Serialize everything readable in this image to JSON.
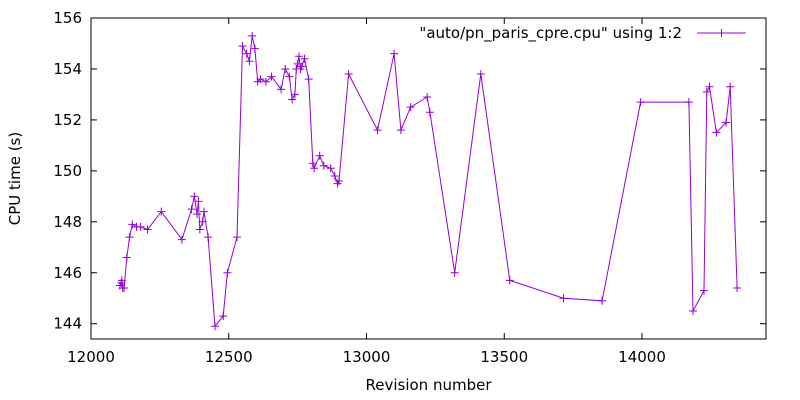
{
  "chart_data": {
    "type": "line",
    "title": "",
    "xlabel": "Revision number",
    "ylabel": "CPU time (s)",
    "xlim": [
      12000,
      14450
    ],
    "ylim": [
      143.4,
      156
    ],
    "xticks": [
      12000,
      12500,
      13000,
      13500,
      14000
    ],
    "yticks": [
      144,
      146,
      148,
      150,
      152,
      154,
      156
    ],
    "grid": false,
    "legend_position": "top-right",
    "series": [
      {
        "name": "\"auto/pn_paris_cpre.cpu\" using 1:2",
        "color": "#9400d3",
        "marker": "plus",
        "points": [
          [
            12105,
            145.5
          ],
          [
            12110,
            145.6
          ],
          [
            12112,
            145.7
          ],
          [
            12115,
            145.4
          ],
          [
            12120,
            145.4
          ],
          [
            12130,
            146.6
          ],
          [
            12140,
            147.4
          ],
          [
            12150,
            147.9
          ],
          [
            12165,
            147.8
          ],
          [
            12180,
            147.8
          ],
          [
            12205,
            147.7
          ],
          [
            12255,
            148.4
          ],
          [
            12330,
            147.3
          ],
          [
            12365,
            148.5
          ],
          [
            12375,
            149.0
          ],
          [
            12385,
            148.3
          ],
          [
            12390,
            148.8
          ],
          [
            12395,
            147.7
          ],
          [
            12405,
            148.0
          ],
          [
            12410,
            148.4
          ],
          [
            12425,
            147.4
          ],
          [
            12450,
            143.9
          ],
          [
            12480,
            144.3
          ],
          [
            12495,
            146.0
          ],
          [
            12530,
            147.4
          ],
          [
            12550,
            154.9
          ],
          [
            12565,
            154.6
          ],
          [
            12575,
            154.3
          ],
          [
            12585,
            155.3
          ],
          [
            12595,
            154.8
          ],
          [
            12605,
            153.5
          ],
          [
            12615,
            153.6
          ],
          [
            12635,
            153.5
          ],
          [
            12655,
            153.7
          ],
          [
            12690,
            153.2
          ],
          [
            12705,
            154.0
          ],
          [
            12720,
            153.7
          ],
          [
            12730,
            152.8
          ],
          [
            12740,
            153.0
          ],
          [
            12745,
            154.0
          ],
          [
            12750,
            154.2
          ],
          [
            12755,
            154.5
          ],
          [
            12760,
            154.0
          ],
          [
            12765,
            154.1
          ],
          [
            12775,
            154.4
          ],
          [
            12790,
            153.6
          ],
          [
            12805,
            150.3
          ],
          [
            12810,
            150.1
          ],
          [
            12830,
            150.6
          ],
          [
            12845,
            150.2
          ],
          [
            12870,
            150.1
          ],
          [
            12885,
            149.8
          ],
          [
            12895,
            149.5
          ],
          [
            12900,
            149.6
          ],
          [
            12935,
            153.8
          ],
          [
            13040,
            151.6
          ],
          [
            13100,
            154.6
          ],
          [
            13125,
            151.6
          ],
          [
            13160,
            152.5
          ],
          [
            13220,
            152.9
          ],
          [
            13230,
            152.3
          ],
          [
            13320,
            146.0
          ],
          [
            13415,
            153.8
          ],
          [
            13520,
            145.7
          ],
          [
            13715,
            145.0
          ],
          [
            13855,
            144.9
          ],
          [
            13995,
            152.7
          ],
          [
            14170,
            152.7
          ],
          [
            14185,
            144.5
          ],
          [
            14225,
            145.3
          ],
          [
            14235,
            153.1
          ],
          [
            14245,
            153.3
          ],
          [
            14270,
            151.5
          ],
          [
            14305,
            151.9
          ],
          [
            14320,
            153.3
          ],
          [
            14345,
            145.4
          ]
        ]
      }
    ]
  }
}
